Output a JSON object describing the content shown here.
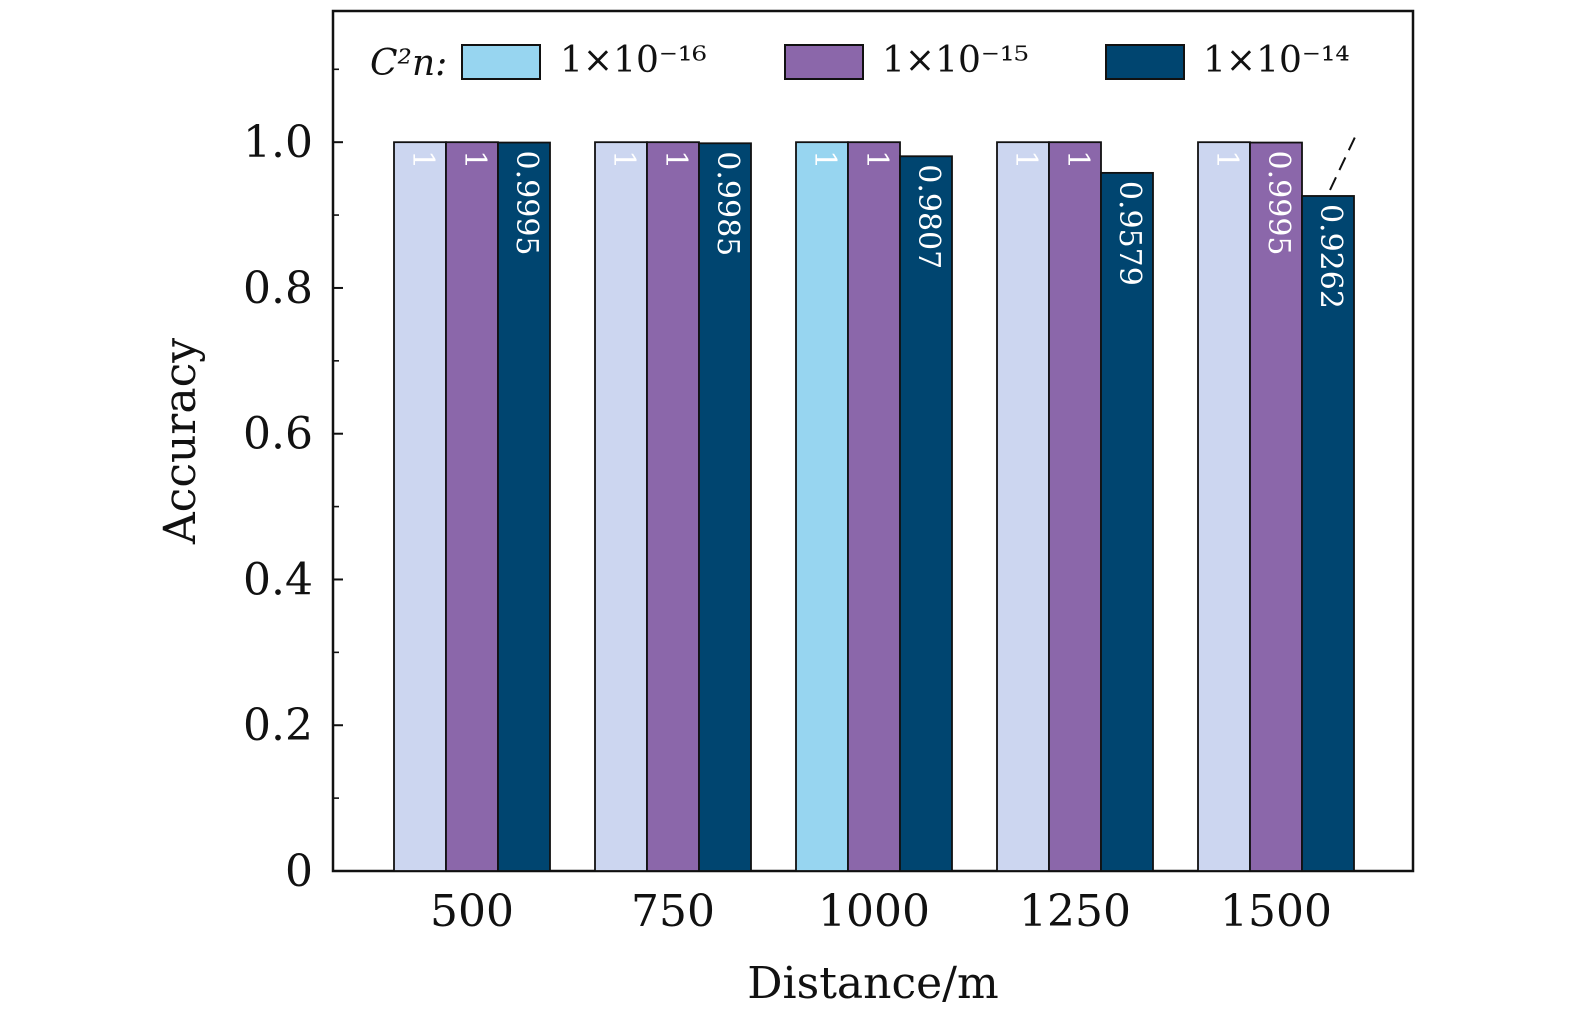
{
  "chart_data": {
    "type": "bar",
    "title": "",
    "xlabel": "Distance/m",
    "ylabel": "Accuracy",
    "ylim": [
      0,
      1.18
    ],
    "yticks": [
      0,
      0.2,
      0.4,
      0.6,
      0.8,
      1.0
    ],
    "ytick_labels": [
      "0",
      "0.2",
      "0.4",
      "0.6",
      "0.8",
      "1.0"
    ],
    "categories": [
      "500",
      "750",
      "1000",
      "1250",
      "1500"
    ],
    "legend_prefix": "C²n:",
    "legend_position": "top",
    "series": [
      {
        "name": "1×10⁻¹⁶",
        "color": "#97d5f0",
        "pale_color": "#ccd6f0",
        "values": [
          1,
          1,
          1,
          1,
          1
        ],
        "labels": [
          "1",
          "1",
          "1",
          "1",
          "1"
        ]
      },
      {
        "name": "1×10⁻¹⁵",
        "color": "#8b67aa",
        "values": [
          1,
          1,
          1,
          1,
          0.9995
        ],
        "labels": [
          "1",
          "1",
          "1",
          "1",
          "0.9995"
        ]
      },
      {
        "name": "1×10⁻¹⁴",
        "color": "#004570",
        "values": [
          0.9995,
          0.9985,
          0.9807,
          0.9579,
          0.9262
        ],
        "labels": [
          "0.9995",
          "0.9985",
          "0.9807",
          "0.9579",
          "0.9262"
        ]
      }
    ],
    "trend_line": "dashed, above last bar of 1×10⁻¹⁴"
  }
}
